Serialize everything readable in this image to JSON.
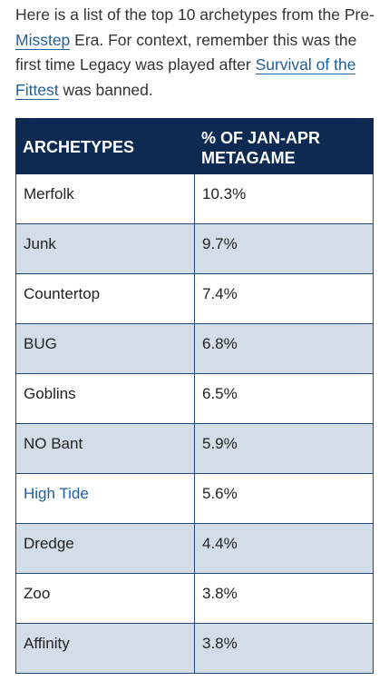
{
  "intro": {
    "text_1": "Here is a list of the top 10 archetypes from the Pre-",
    "link_1": "Misstep",
    "text_2": " Era. For context, remember this was the first time Legacy was played after ",
    "link_2": "Survival of the Fittest",
    "text_3": " was banned."
  },
  "table": {
    "headers": [
      "ARCHETYPES",
      "% OF JAN-APR METAGAME"
    ],
    "rows": [
      {
        "archetype": "Merfolk",
        "percent": "10.3%"
      },
      {
        "archetype": "Junk",
        "percent": "9.7%"
      },
      {
        "archetype": "Countertop",
        "percent": "7.4%"
      },
      {
        "archetype": "BUG",
        "percent": "6.8%"
      },
      {
        "archetype": "Goblins",
        "percent": "6.5%"
      },
      {
        "archetype": "NO Bant",
        "percent": "5.9%"
      },
      {
        "archetype": "High Tide",
        "percent": "5.6%",
        "is_link": true
      },
      {
        "archetype": "Dredge",
        "percent": "4.4%"
      },
      {
        "archetype": "Zoo",
        "percent": "3.8%"
      },
      {
        "archetype": "Affinity",
        "percent": "3.8%"
      }
    ]
  },
  "colors": {
    "header_bg": "#0d2a52",
    "row_alt_bg": "#d3dde7",
    "link": "#1f5f9e"
  }
}
